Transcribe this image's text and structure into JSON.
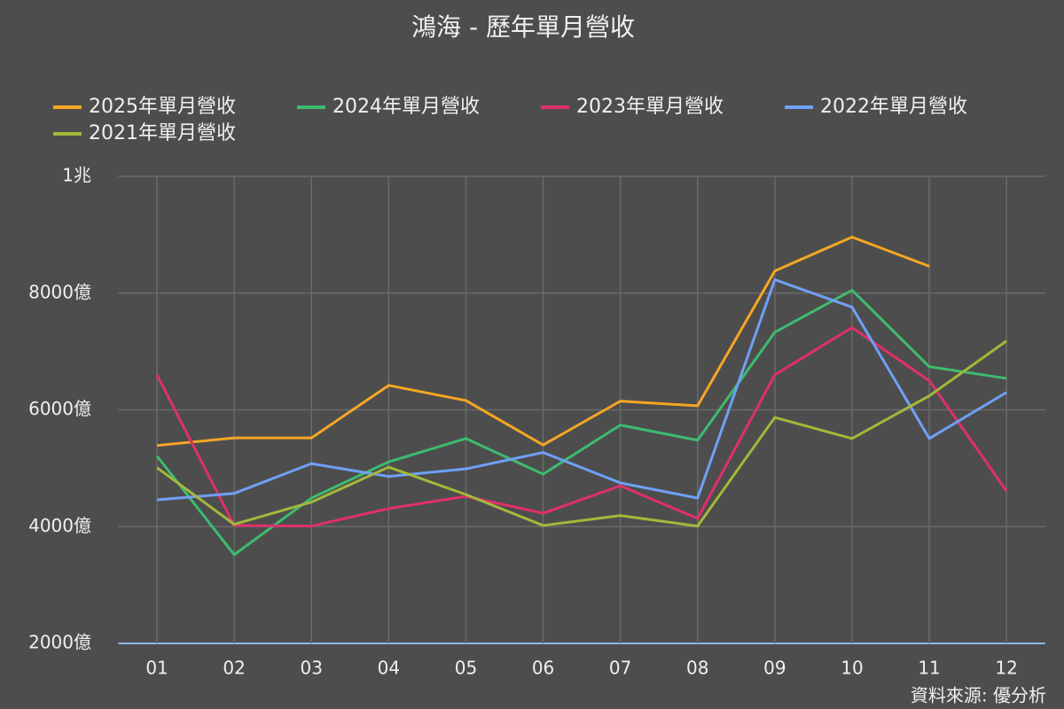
{
  "chart_data": {
    "type": "line",
    "title": "鴻海 - 歷年單月營收",
    "source": "資料來源: 優分析",
    "categories": [
      "01",
      "02",
      "03",
      "04",
      "05",
      "06",
      "07",
      "08",
      "09",
      "10",
      "11",
      "12"
    ],
    "ylim": [
      2000,
      10000
    ],
    "yticks": [
      {
        "value": 2000,
        "label": "2000億"
      },
      {
        "value": 4000,
        "label": "4000億"
      },
      {
        "value": 6000,
        "label": "6000億"
      },
      {
        "value": 8000,
        "label": "8000億"
      },
      {
        "value": 10000,
        "label": "1兆"
      }
    ],
    "grid": true,
    "legend": "top",
    "series": [
      {
        "name": "2025年單月營收",
        "color": "#f5a623",
        "values": [
          5390,
          5520,
          5520,
          6420,
          6160,
          5400,
          6150,
          6070,
          8380,
          8960,
          8460,
          null
        ]
      },
      {
        "name": "2024年單月營收",
        "color": "#3dbb6f",
        "values": [
          5210,
          3520,
          4490,
          5110,
          5510,
          4900,
          5740,
          5480,
          7330,
          8050,
          6740,
          6540
        ]
      },
      {
        "name": "2023年單月營收",
        "color": "#e0306b",
        "values": [
          6600,
          4020,
          4010,
          4310,
          4520,
          4230,
          4700,
          4140,
          6600,
          7410,
          6500,
          4610
        ]
      },
      {
        "name": "2022年單月營收",
        "color": "#6fa0f5",
        "values": [
          4460,
          4570,
          5080,
          4860,
          4990,
          5270,
          4750,
          4490,
          8230,
          7760,
          5510,
          6300
        ]
      },
      {
        "name": "2021年單月營收",
        "color": "#a3b83a",
        "values": [
          5010,
          4040,
          4420,
          5020,
          4550,
          4020,
          4190,
          4010,
          5870,
          5510,
          6240,
          7180
        ]
      }
    ]
  }
}
